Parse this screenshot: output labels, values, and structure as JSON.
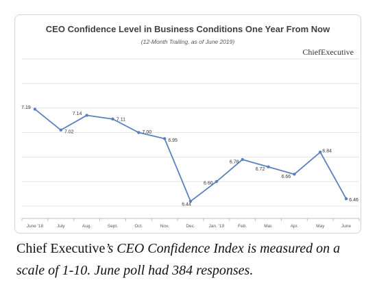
{
  "chart_data": {
    "type": "line",
    "title": "CEO Confidence Level in Business Conditions One Year From Now",
    "subtitle": "(12-Month Trailing, as of June 2019)",
    "brand": "ChiefExecutive",
    "categories": [
      "June '18",
      "July",
      "Aug.",
      "Sept.",
      "Oct.",
      "Nov.",
      "Dec.",
      "Jan. '19",
      "Feb.",
      "Mar.",
      "Apr.",
      "May",
      "June"
    ],
    "series": [
      {
        "values": [
          7.19,
          7.02,
          7.14,
          7.11,
          7.0,
          6.95,
          6.44,
          6.6,
          6.78,
          6.72,
          6.66,
          6.84,
          6.46
        ],
        "labels": [
          "7.19",
          "7.02",
          "7.14",
          "7.11",
          "7.00",
          "6.95",
          "6.44",
          "6.60",
          "6.78",
          "6.72",
          "6.66",
          "6.84",
          "6.46"
        ],
        "color": "#5b7fbe"
      }
    ],
    "ylim": [
      6.3,
      7.6
    ],
    "grid": true,
    "gridline_color": "#e3e3e3",
    "legend": "none"
  },
  "caption": {
    "part1": "Chief Executive",
    "part2": "’s CEO Confidence Index is measured on a scale of 1-10. June poll had 384 responses."
  }
}
